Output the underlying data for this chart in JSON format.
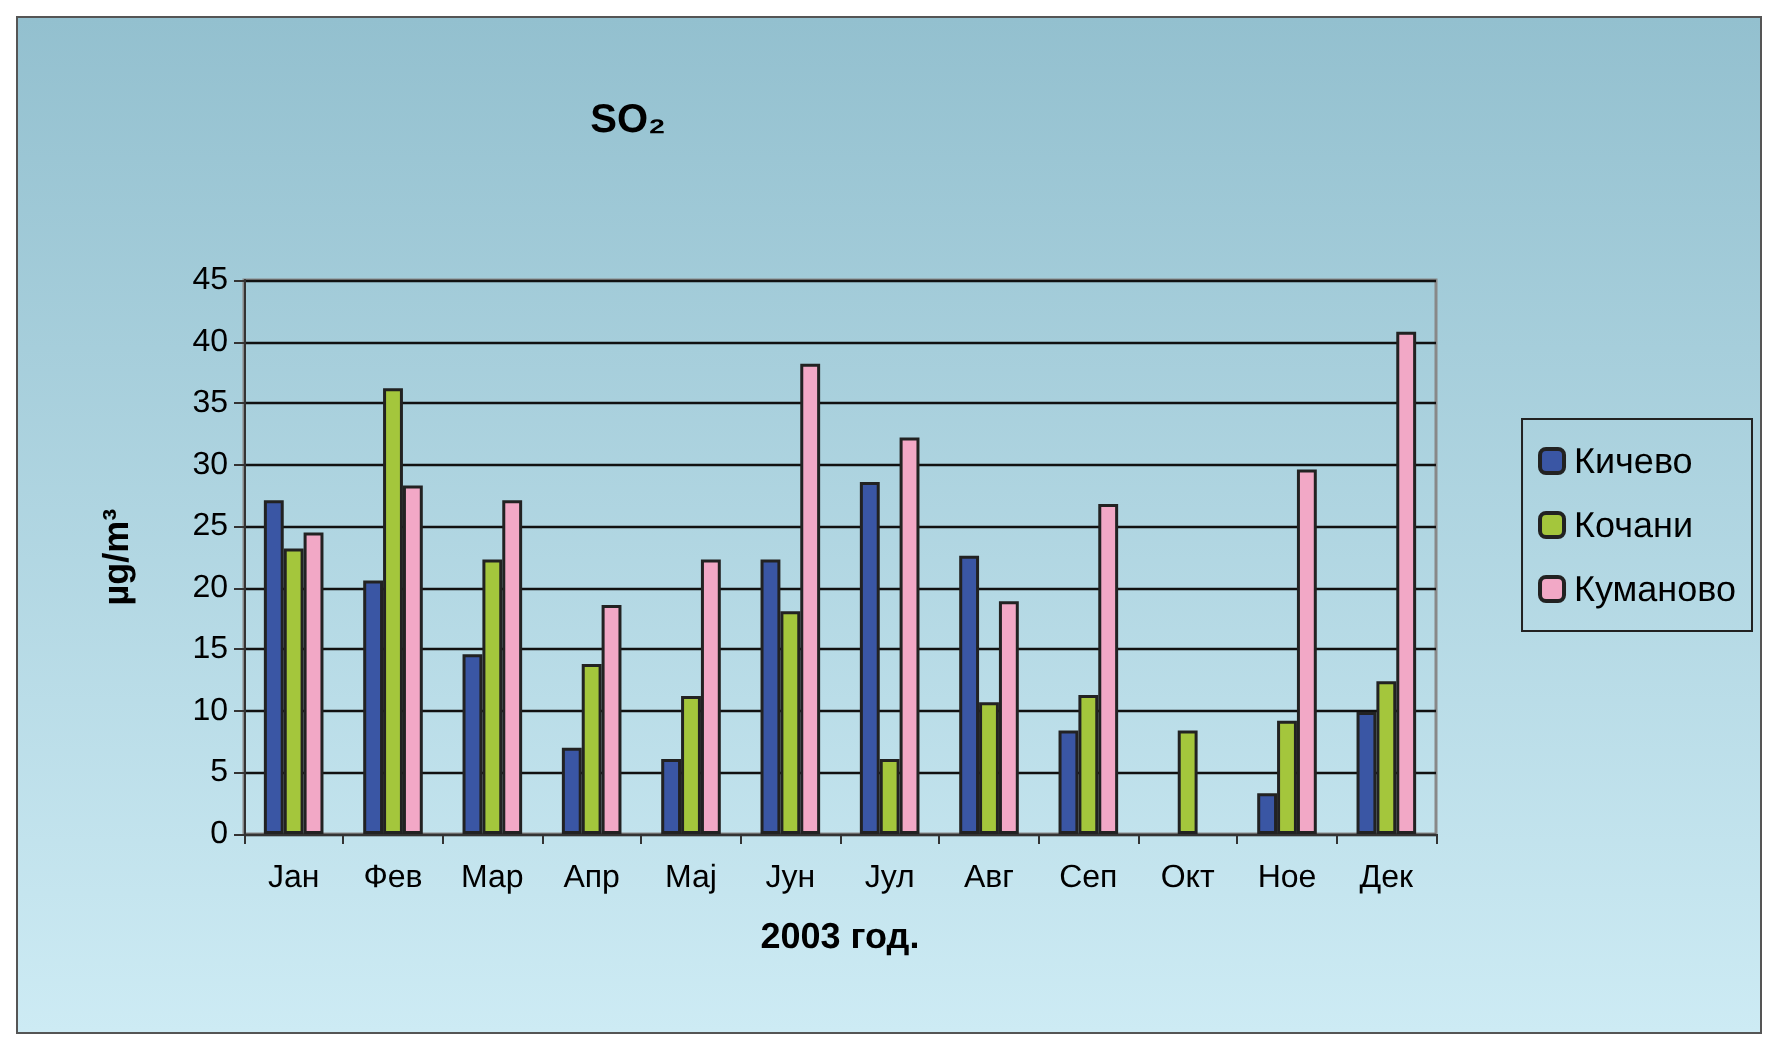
{
  "chart_data": {
    "type": "bar",
    "title": "SO₂",
    "xlabel": "2003 год.",
    "ylabel": "µg/m³",
    "categories": [
      "Јан",
      "Фев",
      "Мар",
      "Апр",
      "Мај",
      "Јун",
      "Јул",
      "Авг",
      "Сеп",
      "Окт",
      "Ное",
      "Дек"
    ],
    "series": [
      {
        "name": "Кичево",
        "color": "#3a56a4",
        "values": [
          27.1,
          20.6,
          14.6,
          7.0,
          6.1,
          22.3,
          28.6,
          22.6,
          8.4,
          null,
          3.3,
          9.9
        ]
      },
      {
        "name": "Кочани",
        "color": "#a4c63c",
        "values": [
          23.2,
          36.2,
          22.3,
          13.8,
          11.2,
          18.1,
          6.1,
          10.7,
          11.3,
          8.4,
          9.2,
          12.4
        ]
      },
      {
        "name": "Куманово",
        "color": "#f2a8c6",
        "values": [
          24.5,
          28.3,
          27.1,
          18.6,
          22.3,
          38.2,
          32.2,
          18.9,
          26.8,
          null,
          29.6,
          40.8
        ]
      }
    ],
    "ylim": [
      0,
      45
    ],
    "yticks": [
      0,
      5,
      10,
      15,
      20,
      25,
      30,
      35,
      40,
      45
    ],
    "grid": "y",
    "legend": "right"
  }
}
